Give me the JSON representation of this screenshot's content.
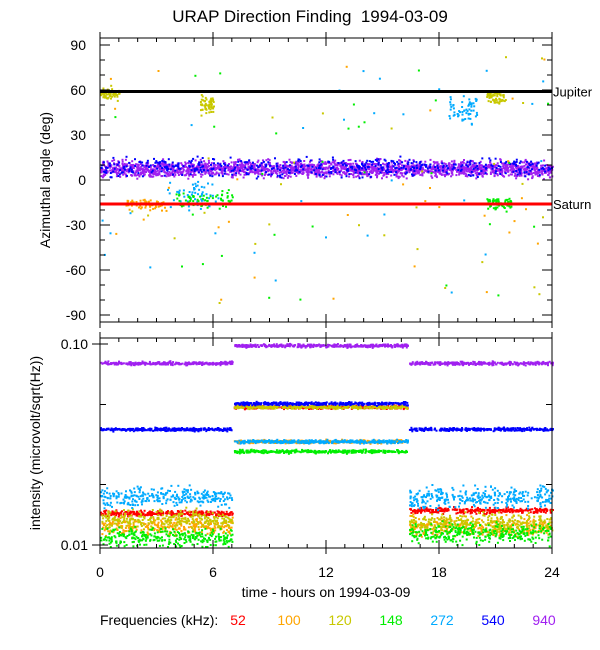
{
  "chart_data": [
    {
      "type": "scatter",
      "title": "URAP Direction Finding  1994-03-09",
      "ylabel": "Azimuthal angle (deg)",
      "xlabel": "",
      "xlim": [
        0,
        24
      ],
      "ylim": [
        -90,
        90
      ],
      "yticks": [
        "90",
        "60",
        "30",
        "0",
        "-30",
        "-60",
        "-90"
      ],
      "reference_lines": [
        {
          "label": "Jupiter",
          "value": 59,
          "color": "#000000"
        },
        {
          "label": "Saturn",
          "value": -16,
          "color": "#ff0000"
        }
      ],
      "clusters": [
        {
          "freq": "940",
          "t": [
            0,
            24
          ],
          "center": 8,
          "spread": 5
        },
        {
          "freq": "540",
          "t": [
            0,
            24
          ],
          "center": 9,
          "spread": 6
        },
        {
          "freq": "272",
          "t": [
            3.5,
            6.5
          ],
          "center": -8,
          "spread": 10
        },
        {
          "freq": "148",
          "t": [
            4,
            7
          ],
          "center": -12,
          "spread": 6
        },
        {
          "freq": "120",
          "t": [
            0,
            1
          ],
          "center": 58,
          "spread": 3
        },
        {
          "freq": "120",
          "t": [
            5.3,
            6
          ],
          "center": 50,
          "spread": 6
        },
        {
          "freq": "100",
          "t": [
            1.3,
            3.5
          ],
          "center": -16,
          "spread": 4
        },
        {
          "freq": "272",
          "t": [
            18.5,
            20
          ],
          "center": 48,
          "spread": 10
        },
        {
          "freq": "120",
          "t": [
            20.5,
            21.5
          ],
          "center": 56,
          "spread": 4
        },
        {
          "freq": "148",
          "t": [
            20.5,
            21.8
          ],
          "center": -15,
          "spread": 4
        }
      ]
    },
    {
      "type": "scatter",
      "ylabel": "intensity (microvolt/sqrt(Hz))",
      "xlabel": "time - hours on 1994-03-09",
      "xlim": [
        0,
        24
      ],
      "ylim": [
        0.01,
        0.1
      ],
      "yscale": "log",
      "xticks": [
        "0",
        "6",
        "12",
        "18",
        "24"
      ],
      "yticks": [
        "0.10",
        "0.01"
      ],
      "series": [
        {
          "name": "52",
          "color": "#ff0000",
          "segments": [
            [
              0,
              7,
              0.0145
            ],
            [
              7.1,
              16.3,
              0.049
            ],
            [
              16.4,
              24,
              0.015
            ]
          ]
        },
        {
          "name": "100",
          "color": "#ffa500",
          "segments": [
            [
              0,
              7,
              0.0125
            ],
            [
              7.1,
              16.3,
              0.033
            ],
            [
              16.4,
              24,
              0.0125
            ]
          ]
        },
        {
          "name": "120",
          "color": "#c8c800",
          "segments": [
            [
              0,
              7,
              0.0135
            ],
            [
              7.1,
              16.3,
              0.049
            ],
            [
              16.4,
              24,
              0.013
            ]
          ]
        },
        {
          "name": "148",
          "color": "#00ee00",
          "segments": [
            [
              0,
              7,
              0.011
            ],
            [
              7.1,
              16.3,
              0.0295
            ],
            [
              16.4,
              24,
              0.0115
            ]
          ]
        },
        {
          "name": "272",
          "color": "#00aaff",
          "segments": [
            [
              0,
              7,
              0.0175
            ],
            [
              7.1,
              16.3,
              0.033
            ],
            [
              16.4,
              24,
              0.0175
            ]
          ]
        },
        {
          "name": "540",
          "color": "#0000ff",
          "segments": [
            [
              0,
              7,
              0.038
            ],
            [
              7.1,
              16.3,
              0.051
            ],
            [
              16.4,
              24,
              0.038
            ]
          ]
        },
        {
          "name": "940",
          "color": "#a020f0",
          "segments": [
            [
              0,
              7,
              0.081
            ],
            [
              7.1,
              16.3,
              0.099
            ],
            [
              16.4,
              24,
              0.081
            ]
          ]
        }
      ]
    }
  ],
  "legend": {
    "label": "Frequencies (kHz):",
    "items": [
      {
        "name": "52",
        "color": "#ff0000"
      },
      {
        "name": "100",
        "color": "#ffa500"
      },
      {
        "name": "120",
        "color": "#c8c800"
      },
      {
        "name": "148",
        "color": "#00ee00"
      },
      {
        "name": "272",
        "color": "#00aaff"
      },
      {
        "name": "540",
        "color": "#0000ff"
      },
      {
        "name": "940",
        "color": "#a020f0"
      }
    ]
  }
}
